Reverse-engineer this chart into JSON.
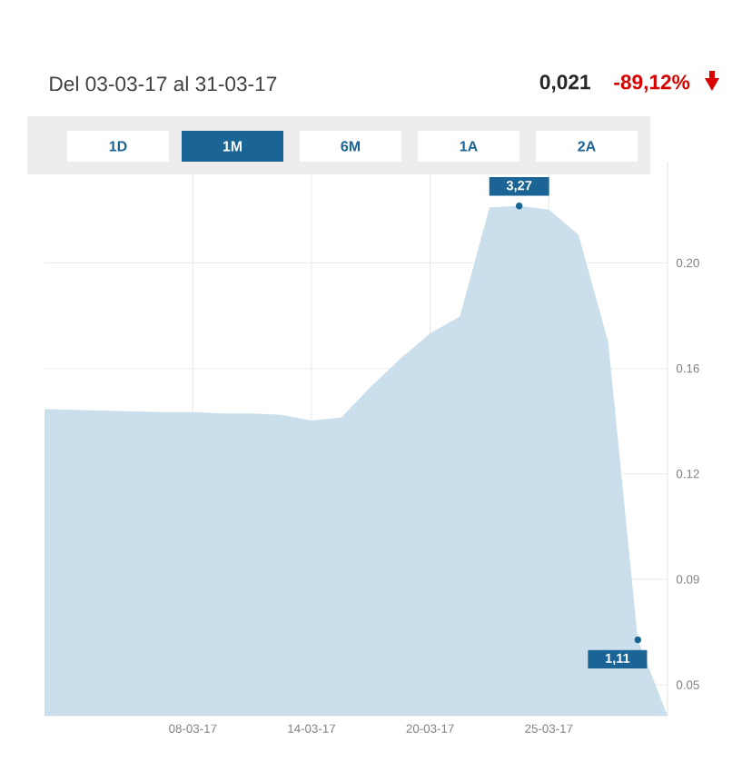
{
  "chart_data": {
    "type": "area",
    "title": "Del 03-03-17 al 31-03-17",
    "annotations": [
      "0,021",
      "-89,12%",
      "1D",
      "1M",
      "6M",
      "1A",
      "2A",
      {
        "text": "3,27",
        "y": 0.2203
      },
      "1,11"
    ],
    "categories": [
      null,
      null,
      null,
      null,
      null,
      "08-03-17",
      null,
      null,
      null,
      "14-03-17",
      null,
      null,
      null,
      "20-03-17",
      null,
      null,
      null,
      "25-03-17",
      null,
      null,
      null,
      null
    ],
    "values": [
      0.148,
      0.1478,
      0.1475,
      0.1472,
      0.147,
      0.147,
      0.1465,
      0.1465,
      0.146,
      0.144,
      0.145,
      0.156,
      0.166,
      0.175,
      0.181,
      0.2198,
      0.2203,
      0.219,
      0.21,
      0.172,
      0.066,
      0.039
    ],
    "color": "#cadfeb",
    "ylim": [
      0.039,
      0.236
    ],
    "yticks": [
      0.05,
      {
        "value": 0.0875,
        "label": "0.09"
      },
      {
        "value": 0.125,
        "label": "0.12"
      },
      {
        "value": 0.1625,
        "label": "0.16"
      },
      {
        "value": 0.2,
        "label": "0.20"
      }
    ],
    "grid": true
  }
}
